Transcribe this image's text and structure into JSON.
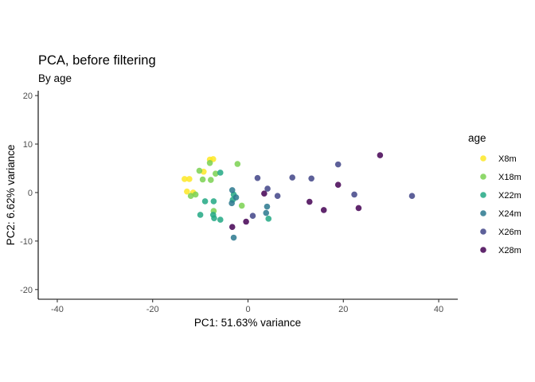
{
  "chart_data": {
    "type": "scatter",
    "title": "PCA, before filtering",
    "subtitle": "By age",
    "xlabel": "PC1: 51.63% variance",
    "ylabel": "PC2: 6.62% variance",
    "xlim": [
      -44,
      44
    ],
    "ylim": [
      -22,
      21
    ],
    "x_ticks": [
      -40,
      -20,
      0,
      20,
      40
    ],
    "y_ticks": [
      -20,
      -10,
      0,
      10,
      20
    ],
    "grid": false,
    "legend": {
      "title": "age",
      "position": "right"
    },
    "series": [
      {
        "name": "X8m",
        "color": "#FDE725",
        "points": [
          [
            -13.3,
            2.8
          ],
          [
            -12.8,
            0.2
          ],
          [
            -12.3,
            2.8
          ],
          [
            -11.5,
            0.0
          ],
          [
            -9.3,
            4.3
          ],
          [
            -8.0,
            6.8
          ],
          [
            -7.3,
            6.9
          ]
        ]
      },
      {
        "name": "X18m",
        "color": "#7AD151",
        "points": [
          [
            -12.0,
            -0.7
          ],
          [
            -11.0,
            -0.4
          ],
          [
            -10.2,
            4.5
          ],
          [
            -9.5,
            2.7
          ],
          [
            -8.0,
            6.1
          ],
          [
            -7.8,
            2.6
          ],
          [
            -6.8,
            3.9
          ],
          [
            -7.2,
            -3.8
          ],
          [
            -2.2,
            5.9
          ],
          [
            -1.3,
            -2.7
          ]
        ]
      },
      {
        "name": "X22m",
        "color": "#22A884",
        "points": [
          [
            -10.0,
            -4.6
          ],
          [
            -9.0,
            -1.8
          ],
          [
            -7.2,
            -1.8
          ],
          [
            -7.3,
            -4.6
          ],
          [
            -7.1,
            -5.3
          ],
          [
            -5.8,
            4.1
          ],
          [
            -5.8,
            -5.6
          ],
          [
            -3.2,
            -1.5
          ],
          [
            -3.0,
            -0.4
          ],
          [
            4.3,
            -5.4
          ]
        ]
      },
      {
        "name": "X24m",
        "color": "#2A788E",
        "points": [
          [
            -3.3,
            0.5
          ],
          [
            -3.4,
            -2.2
          ],
          [
            -2.5,
            -1.0
          ],
          [
            -3.0,
            -9.3
          ],
          [
            3.8,
            -4.2
          ],
          [
            4.0,
            -2.9
          ]
        ]
      },
      {
        "name": "X26m",
        "color": "#414487",
        "points": [
          [
            1.0,
            -4.8
          ],
          [
            2.0,
            3.0
          ],
          [
            4.1,
            0.8
          ],
          [
            6.2,
            -0.7
          ],
          [
            9.3,
            3.1
          ],
          [
            13.3,
            2.9
          ],
          [
            18.9,
            5.8
          ],
          [
            22.3,
            -0.4
          ],
          [
            34.4,
            -0.7
          ]
        ]
      },
      {
        "name": "X28m",
        "color": "#440154",
        "points": [
          [
            -3.3,
            -7.1
          ],
          [
            -0.4,
            -6.0
          ],
          [
            3.4,
            -0.2
          ],
          [
            12.9,
            -1.9
          ],
          [
            15.9,
            -3.6
          ],
          [
            18.9,
            1.6
          ],
          [
            23.2,
            -3.2
          ],
          [
            27.7,
            7.7
          ]
        ]
      }
    ]
  }
}
